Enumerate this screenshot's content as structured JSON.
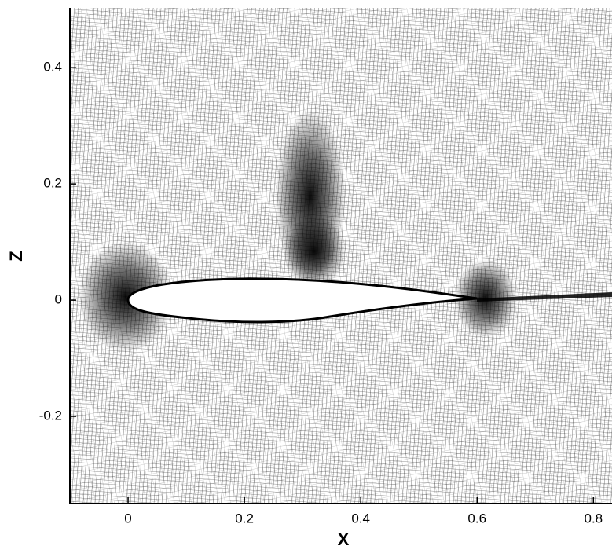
{
  "chart_data": {
    "type": "mesh",
    "x_label": "X",
    "y_label": "Z",
    "xlim": [
      -0.1,
      0.832
    ],
    "ylim": [
      -0.35,
      0.503
    ],
    "xticks": [
      0,
      0.2,
      0.4,
      0.6,
      0.8
    ],
    "yticks": [
      -0.2,
      0,
      0.2,
      0.4
    ]
  }
}
